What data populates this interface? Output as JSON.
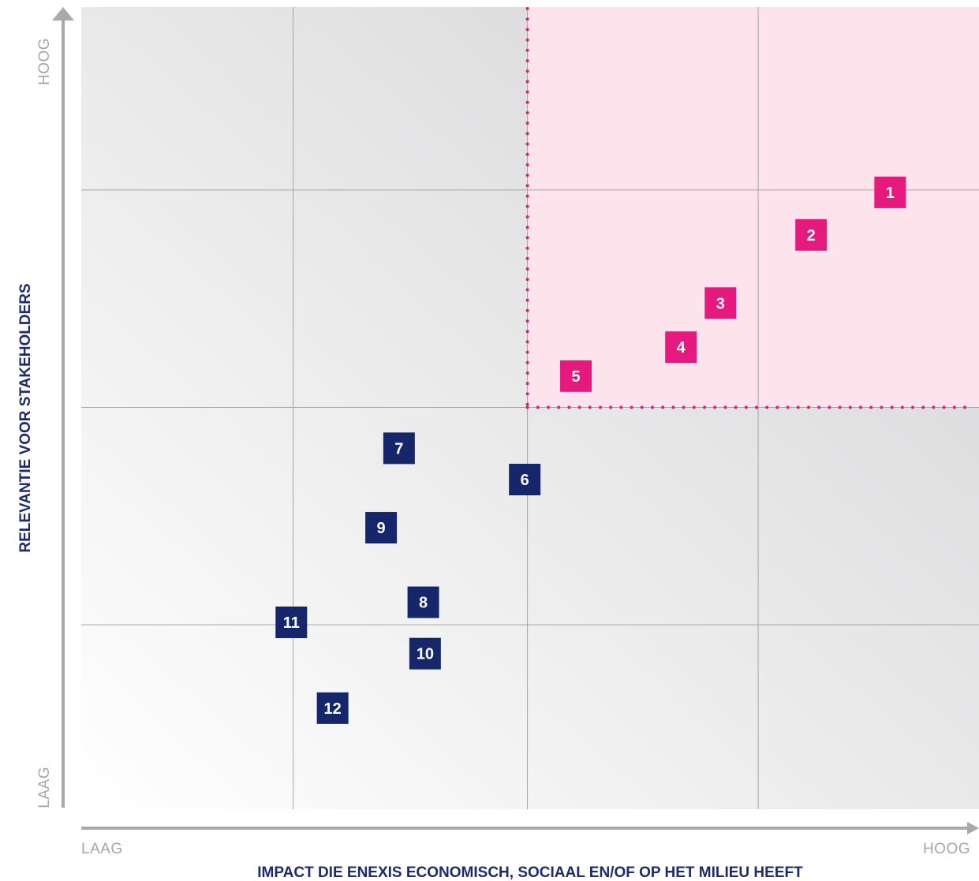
{
  "chart_data": {
    "type": "scatter",
    "xlabel": "IMPACT DIE ENEXIS ECONOMISCH, SOCIAAL EN/OF OP HET MILIEU HEEFT",
    "ylabel": "RELEVANTIE VOOR STAKEHOLDERS",
    "x_range_labels": {
      "low": "LAAG",
      "high": "HOOG"
    },
    "y_range_labels": {
      "low": "LAAG",
      "high": "HOOG"
    },
    "xlim": [
      0,
      100
    ],
    "ylim": [
      0,
      100
    ],
    "grid": true,
    "grid_x": [
      23.6,
      49.7,
      75.4
    ],
    "grid_y": [
      23.0,
      50.1,
      77.2
    ],
    "highlight_region": {
      "x": [
        49.7,
        100
      ],
      "y": [
        50.1,
        100
      ],
      "color": "#fde3ec",
      "border_color": "#e6197e"
    },
    "colors": {
      "material": "#e6197e",
      "other": "#15266b"
    },
    "points": [
      {
        "label": "1",
        "x": 90.1,
        "y": 76.9,
        "group": "material"
      },
      {
        "label": "2",
        "x": 81.3,
        "y": 71.6,
        "group": "material"
      },
      {
        "label": "3",
        "x": 71.2,
        "y": 63.1,
        "group": "material"
      },
      {
        "label": "4",
        "x": 66.8,
        "y": 57.6,
        "group": "material"
      },
      {
        "label": "5",
        "x": 55.1,
        "y": 54.0,
        "group": "material"
      },
      {
        "label": "6",
        "x": 49.4,
        "y": 41.1,
        "group": "other"
      },
      {
        "label": "7",
        "x": 35.4,
        "y": 45.0,
        "group": "other"
      },
      {
        "label": "8",
        "x": 38.1,
        "y": 25.8,
        "group": "other"
      },
      {
        "label": "9",
        "x": 33.4,
        "y": 35.1,
        "group": "other"
      },
      {
        "label": "10",
        "x": 38.3,
        "y": 19.4,
        "group": "other"
      },
      {
        "label": "11",
        "x": 23.4,
        "y": 23.3,
        "group": "other"
      },
      {
        "label": "12",
        "x": 28.0,
        "y": 12.6,
        "group": "other"
      }
    ]
  }
}
